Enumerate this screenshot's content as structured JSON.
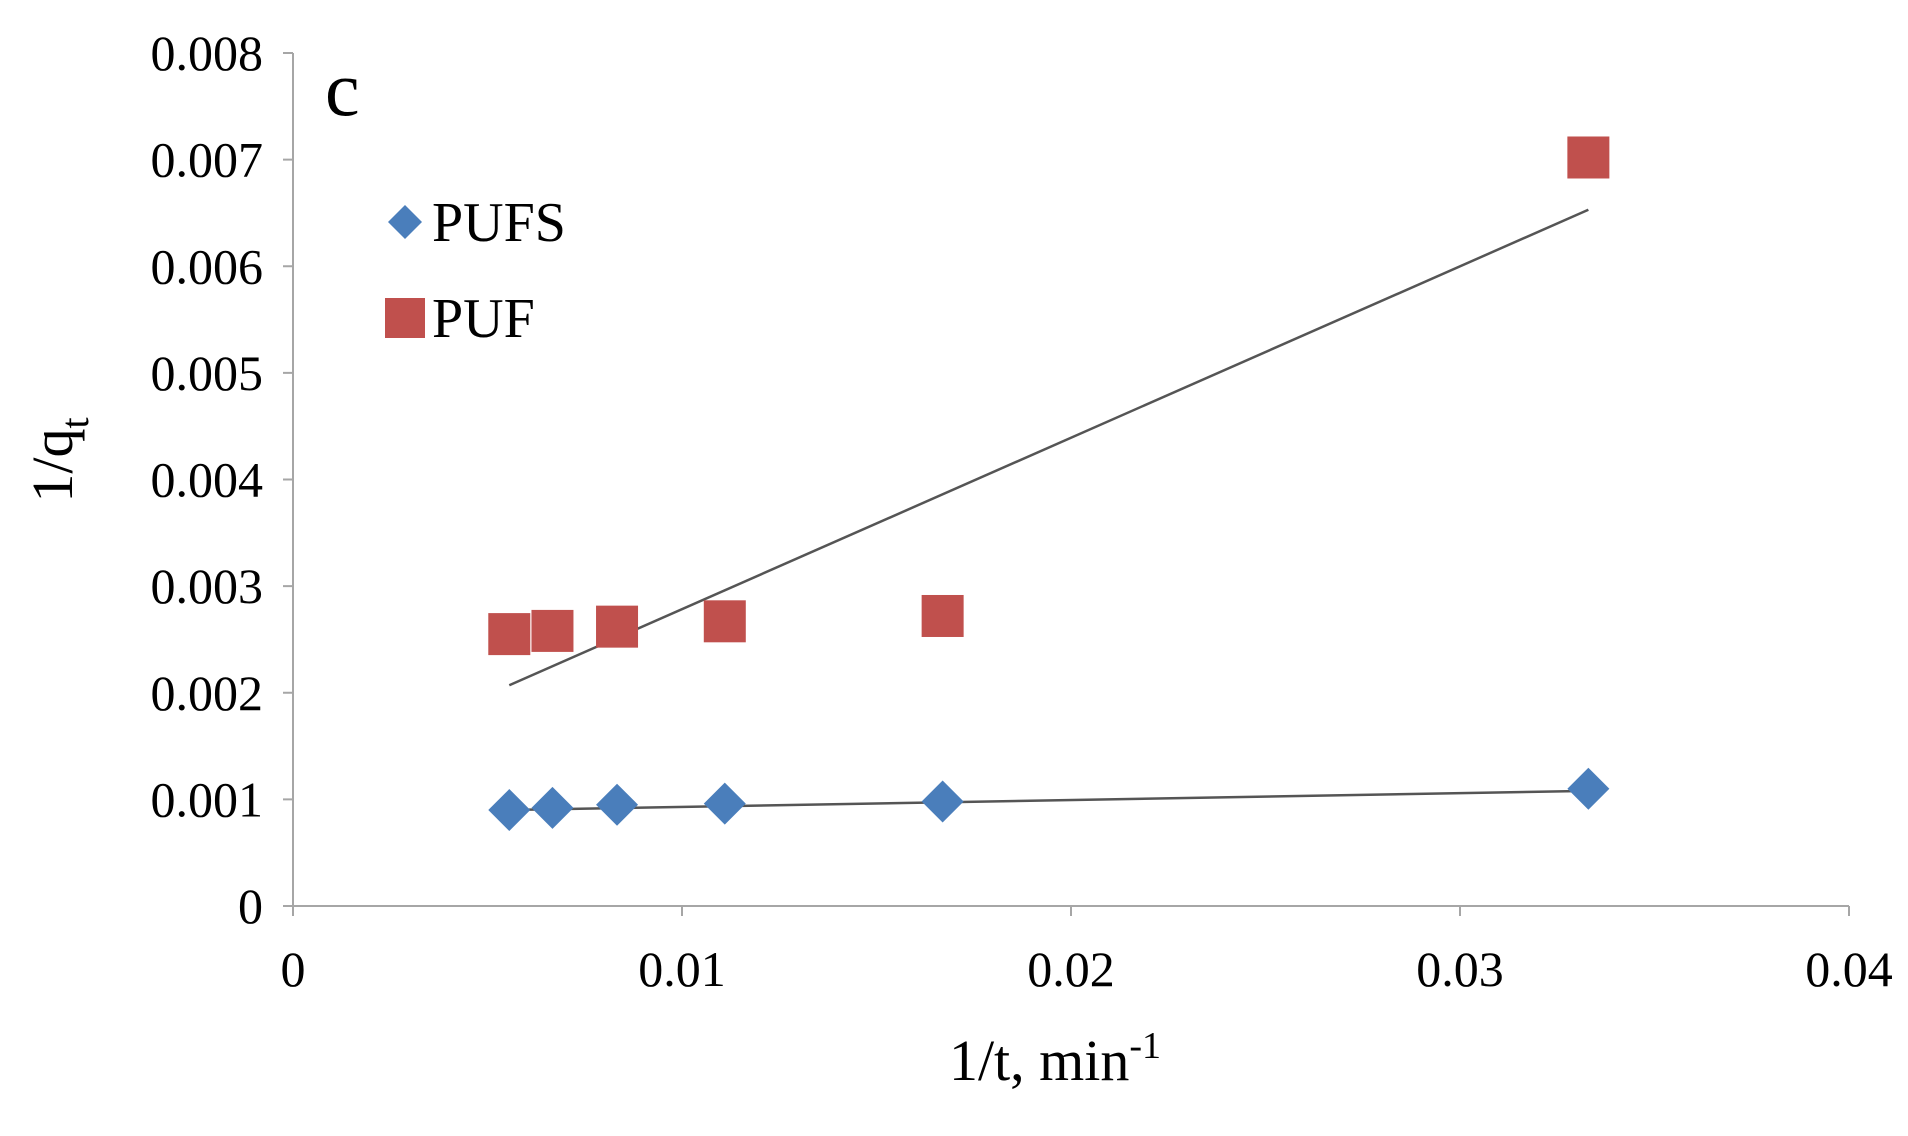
{
  "panel_label": "c",
  "chart_data": {
    "type": "scatter",
    "title": "",
    "xlabel_main": "1/t, min",
    "xlabel_sup": "-1",
    "ylabel_main": "1/q",
    "ylabel_sub": "t",
    "xlim": [
      0,
      0.04
    ],
    "ylim": [
      0,
      0.008
    ],
    "x_ticks": [
      0,
      0.01,
      0.02,
      0.03,
      0.04
    ],
    "x_tick_labels": [
      "0",
      "0.01",
      "0.02",
      "0.03",
      "0.04"
    ],
    "y_ticks": [
      0,
      0.001,
      0.002,
      0.003,
      0.004,
      0.005,
      0.006,
      0.007,
      0.008
    ],
    "y_tick_labels": [
      "0",
      "0.001",
      "0.002",
      "0.003",
      "0.004",
      "0.005",
      "0.006",
      "0.007",
      "0.008"
    ],
    "legend_position": "top-left",
    "series": [
      {
        "name": "PUFS",
        "marker": "diamond",
        "color": "#4a7ebb",
        "x": [
          0.00556,
          0.00667,
          0.00833,
          0.0111,
          0.0167,
          0.0333
        ],
        "y": [
          0.0009,
          0.00092,
          0.00095,
          0.00096,
          0.00098,
          0.0011
        ],
        "trendline": {
          "x": [
            0.00556,
            0.0333
          ],
          "y": [
            0.0009,
            0.00108
          ]
        }
      },
      {
        "name": "PUF",
        "marker": "square",
        "color": "#c0504d",
        "x": [
          0.00556,
          0.00667,
          0.00833,
          0.0111,
          0.0167,
          0.0333
        ],
        "y": [
          0.00255,
          0.00258,
          0.00262,
          0.00267,
          0.00272,
          0.00702
        ],
        "trendline": {
          "x": [
            0.00556,
            0.0333
          ],
          "y": [
            0.00207,
            0.00653
          ]
        }
      }
    ]
  }
}
